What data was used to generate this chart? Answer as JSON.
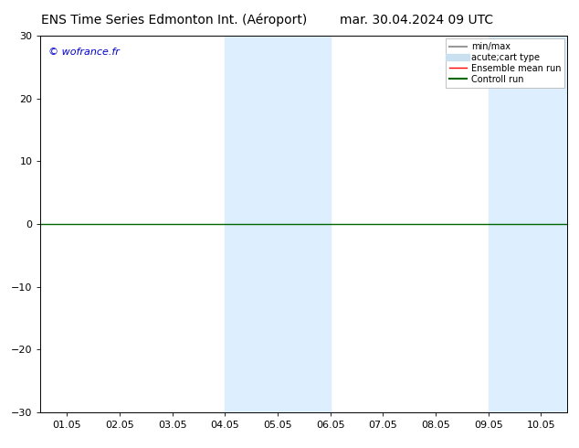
{
  "title_left": "ENS Time Series Edmonton Int. (Aéroport)",
  "title_right": "mar. 30.04.2024 09 UTC",
  "ylim": [
    -30,
    30
  ],
  "yticks": [
    -30,
    -20,
    -10,
    0,
    10,
    20,
    30
  ],
  "xtick_labels": [
    "01.05",
    "02.05",
    "03.05",
    "04.05",
    "05.05",
    "06.05",
    "07.05",
    "08.05",
    "09.05",
    "10.05"
  ],
  "xtick_positions": [
    0,
    1,
    2,
    3,
    4,
    5,
    6,
    7,
    8,
    9
  ],
  "xlim": [
    -0.5,
    9.5
  ],
  "shaded_regions": [
    {
      "x_start": 3.0,
      "x_end": 5.0,
      "color": "#ddeeff"
    },
    {
      "x_start": 8.0,
      "x_end": 9.5,
      "color": "#ddeeff"
    }
  ],
  "zero_line_y": 0,
  "zero_line_color": "#006600",
  "watermark_text": "© wofrance.fr",
  "watermark_color": "#0000cc",
  "legend_items": [
    {
      "label": "min/max",
      "color": "#999999",
      "lw": 1.5
    },
    {
      "label": "acute;cart type",
      "color": "#c8e0f0",
      "lw": 6
    },
    {
      "label": "Ensemble mean run",
      "color": "#ff0000",
      "lw": 1
    },
    {
      "label": "Controll run",
      "color": "#006600",
      "lw": 1.5
    }
  ],
  "background_color": "#ffffff",
  "title_fontsize": 10,
  "tick_fontsize": 8,
  "legend_fontsize": 7
}
